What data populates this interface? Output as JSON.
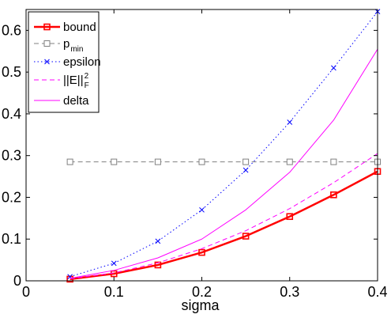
{
  "chart_data": {
    "type": "line",
    "title": "",
    "xlabel": "sigma",
    "ylabel": "",
    "xlim": [
      0,
      0.4
    ],
    "ylim": [
      0,
      0.65
    ],
    "x_ticks": [
      0,
      0.1,
      0.2,
      0.3,
      0.4
    ],
    "y_ticks": [
      0,
      0.1,
      0.2,
      0.3,
      0.4,
      0.5,
      0.6
    ],
    "x_tick_labels": [
      "0",
      "0.1",
      "0.2",
      "0.3",
      "0.4"
    ],
    "y_tick_labels": [
      "0",
      "0.1",
      "0.2",
      "0.3",
      "0.4",
      "0.5",
      "0.6"
    ],
    "grid": false,
    "legend_position": "top-left",
    "series": [
      {
        "name": "bound",
        "color": "#ff0000",
        "line_style": "solid",
        "marker": "square",
        "x": [
          0.05,
          0.1,
          0.15,
          0.2,
          0.25,
          0.3,
          0.35,
          0.4
        ],
        "values": [
          0.004,
          0.017,
          0.038,
          0.068,
          0.107,
          0.154,
          0.206,
          0.262
        ]
      },
      {
        "name": "p",
        "name_sub": "min",
        "color": "#808080",
        "line_style": "dashed",
        "marker": "square-open",
        "x": [
          0.05,
          0.1,
          0.15,
          0.2,
          0.25,
          0.3,
          0.35,
          0.4
        ],
        "values": [
          0.285,
          0.285,
          0.285,
          0.285,
          0.285,
          0.285,
          0.285,
          0.285
        ]
      },
      {
        "name": "epsilon",
        "color": "#0000ff",
        "line_style": "dotted",
        "marker": "x",
        "x": [
          0.05,
          0.1,
          0.15,
          0.2,
          0.25,
          0.3,
          0.35,
          0.4
        ],
        "values": [
          0.01,
          0.042,
          0.095,
          0.17,
          0.265,
          0.38,
          0.51,
          0.645
        ]
      },
      {
        "name": "||E||",
        "name_sub": "F",
        "name_sup": "2",
        "color": "#ff00ff",
        "line_style": "dashed",
        "marker": "none",
        "x": [
          0.05,
          0.1,
          0.15,
          0.2,
          0.25,
          0.3,
          0.35,
          0.4
        ],
        "values": [
          0.005,
          0.019,
          0.043,
          0.077,
          0.12,
          0.173,
          0.235,
          0.305
        ]
      },
      {
        "name": "delta",
        "color": "#ff00ff",
        "line_style": "solid",
        "marker": "none",
        "x": [
          0.05,
          0.1,
          0.15,
          0.2,
          0.25,
          0.3,
          0.35,
          0.4
        ],
        "values": [
          0.006,
          0.025,
          0.055,
          0.1,
          0.17,
          0.26,
          0.385,
          0.555
        ]
      }
    ]
  }
}
